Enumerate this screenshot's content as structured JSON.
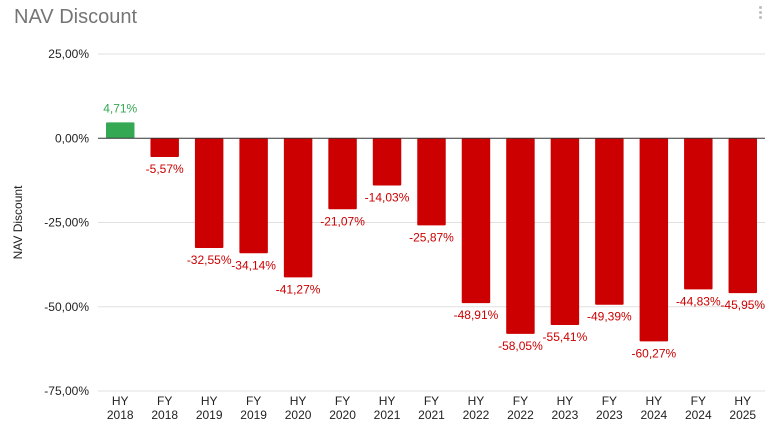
{
  "title": "NAV Discount",
  "menu_icon": "more-vert-icon",
  "chart_data": {
    "type": "bar",
    "title": "NAV Discount",
    "ylabel": "NAV Discount",
    "xlabel": "",
    "ylim": [
      -75,
      25
    ],
    "yticks": [
      25,
      0,
      -25,
      -50,
      -75
    ],
    "ytick_labels": [
      "25,00%",
      "0,00%",
      "-25,00%",
      "-50,00%",
      "-75,00%"
    ],
    "grid": true,
    "legend": "none",
    "categories": [
      [
        "HY",
        "2018"
      ],
      [
        "FY",
        "2018"
      ],
      [
        "HY",
        "2019"
      ],
      [
        "FY",
        "2019"
      ],
      [
        "HY",
        "2020"
      ],
      [
        "FY",
        "2020"
      ],
      [
        "HY",
        "2021"
      ],
      [
        "FY",
        "2021"
      ],
      [
        "HY",
        "2022"
      ],
      [
        "FY",
        "2022"
      ],
      [
        "HY",
        "2023"
      ],
      [
        "FY",
        "2023"
      ],
      [
        "HY",
        "2024"
      ],
      [
        "FY",
        "2024"
      ],
      [
        "HY",
        "2025"
      ]
    ],
    "values": [
      4.71,
      -5.57,
      -32.55,
      -34.14,
      -41.27,
      -21.07,
      -14.03,
      -25.87,
      -48.91,
      -58.05,
      -55.41,
      -49.39,
      -60.27,
      -44.83,
      -45.95
    ],
    "data_labels": [
      "4,71%",
      "-5,57%",
      "-32,55%",
      "-34,14%",
      "-41,27%",
      "-21,07%",
      "-14,03%",
      "-25,87%",
      "-48,91%",
      "-58,05%",
      "-55,41%",
      "-49,39%",
      "-60,27%",
      "-44,83%",
      "-45,95%"
    ],
    "colors": {
      "positive": "#34a853",
      "negative": "#cc0000",
      "positive_label": "#34a853",
      "negative_label": "#cc0000",
      "grid": "#e0e0e0",
      "zero_line": "#333333"
    }
  }
}
